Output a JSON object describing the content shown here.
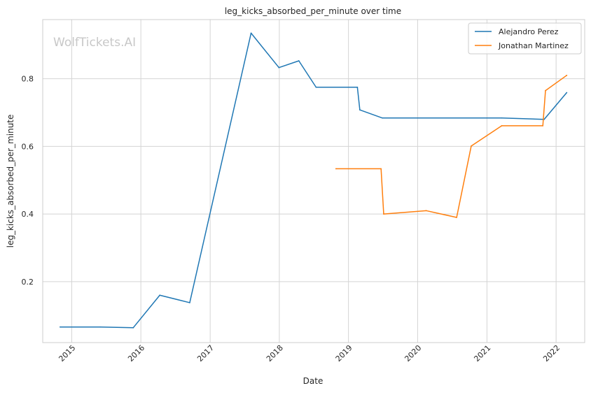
{
  "chart_data": {
    "type": "line",
    "title": "leg_kicks_absorbed_per_minute over time",
    "xlabel": "Date",
    "ylabel": "leg_kicks_absorbed_per_minute",
    "watermark": "WolfTickets.AI",
    "x_ticks": [
      "2015",
      "2016",
      "2017",
      "2018",
      "2019",
      "2020",
      "2021",
      "2022"
    ],
    "y_ticks": [
      "0.2",
      "0.4",
      "0.6",
      "0.8"
    ],
    "xlim": [
      "2014-08-01",
      "2022-06-01"
    ],
    "ylim": [
      0.02,
      0.975
    ],
    "grid": true,
    "legend_position": "top-right",
    "series": [
      {
        "name": "Alejandro Perez",
        "color": "#1f77b4",
        "points": [
          {
            "x": "2014-11-01",
            "y": 0.066
          },
          {
            "x": "2015-06-01",
            "y": 0.066
          },
          {
            "x": "2015-11-22",
            "y": 0.064
          },
          {
            "x": "2016-04-10",
            "y": 0.16
          },
          {
            "x": "2016-09-15",
            "y": 0.138
          },
          {
            "x": "2017-08-05",
            "y": 0.935
          },
          {
            "x": "2017-12-30",
            "y": 0.833
          },
          {
            "x": "2018-04-14",
            "y": 0.853
          },
          {
            "x": "2018-07-14",
            "y": 0.775
          },
          {
            "x": "2019-02-17",
            "y": 0.775
          },
          {
            "x": "2019-03-02",
            "y": 0.708
          },
          {
            "x": "2019-06-29",
            "y": 0.684
          },
          {
            "x": "2021-03-20",
            "y": 0.684
          },
          {
            "x": "2021-10-30",
            "y": 0.68
          },
          {
            "x": "2022-02-26",
            "y": 0.759
          }
        ]
      },
      {
        "name": "Jonathan Martinez",
        "color": "#ff7f0e",
        "points": [
          {
            "x": "2018-10-27",
            "y": 0.534
          },
          {
            "x": "2019-06-22",
            "y": 0.534
          },
          {
            "x": "2019-07-06",
            "y": 0.4
          },
          {
            "x": "2020-02-15",
            "y": 0.41
          },
          {
            "x": "2020-07-25",
            "y": 0.39
          },
          {
            "x": "2020-10-10",
            "y": 0.601
          },
          {
            "x": "2021-03-20",
            "y": 0.661
          },
          {
            "x": "2021-10-23",
            "y": 0.661
          },
          {
            "x": "2021-11-06",
            "y": 0.765
          },
          {
            "x": "2022-02-26",
            "y": 0.81
          }
        ]
      }
    ]
  }
}
